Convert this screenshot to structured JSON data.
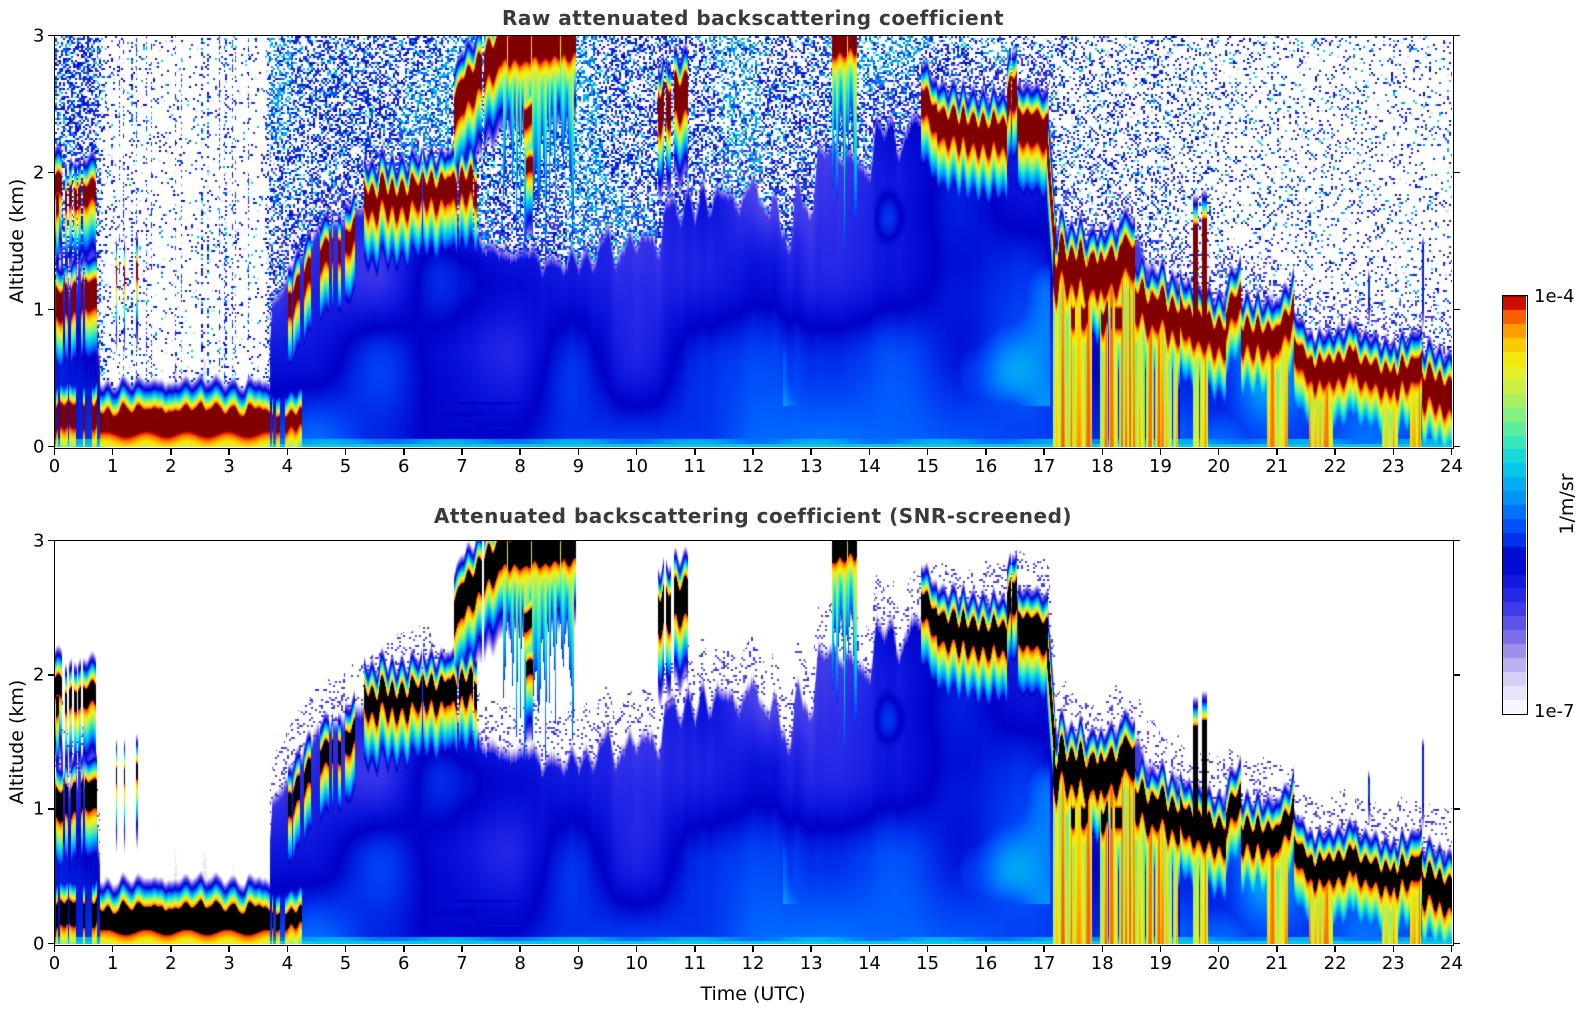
{
  "page": {
    "background": "#ffffff"
  },
  "chart_data": {
    "type": "heatmap",
    "panels": [
      {
        "id": "raw",
        "title": "Raw attenuated backscattering coefficient",
        "screened": false
      },
      {
        "id": "screened",
        "title": "Attenuated backscattering coefficient (SNR-screened)",
        "screened": true
      }
    ],
    "xlabel": "Time (UTC)",
    "ylabel": "Altitude (km)",
    "x_range": [
      0,
      24
    ],
    "y_range": [
      0,
      3
    ],
    "x_tick_labels": [
      "0",
      "1",
      "2",
      "3",
      "4",
      "5",
      "6",
      "7",
      "8",
      "9",
      "10",
      "11",
      "12",
      "13",
      "14",
      "15",
      "16",
      "17",
      "18",
      "19",
      "20",
      "21",
      "22",
      "23",
      "24"
    ],
    "y_tick_labels": [
      "0",
      "1",
      "2",
      "3"
    ],
    "title_color": "#3a3a3a",
    "colorbar": {
      "max_label": "1e-4",
      "min_label": "1e-7",
      "unit": "1/m/sr",
      "log_min_exp": -7,
      "log_max_exp": -4,
      "steps": 30,
      "stops": [
        [
          0.0,
          255,
          255,
          255
        ],
        [
          0.03,
          242,
          240,
          252
        ],
        [
          0.08,
          216,
          210,
          246
        ],
        [
          0.13,
          176,
          164,
          238
        ],
        [
          0.18,
          128,
          112,
          232
        ],
        [
          0.23,
          80,
          72,
          232
        ],
        [
          0.28,
          40,
          40,
          232
        ],
        [
          0.33,
          10,
          20,
          220
        ],
        [
          0.37,
          0,
          0,
          200
        ],
        [
          0.42,
          0,
          52,
          240
        ],
        [
          0.47,
          0,
          100,
          255
        ],
        [
          0.52,
          0,
          150,
          248
        ],
        [
          0.57,
          0,
          192,
          240
        ],
        [
          0.62,
          24,
          220,
          216
        ],
        [
          0.66,
          64,
          236,
          180
        ],
        [
          0.7,
          112,
          240,
          144
        ],
        [
          0.74,
          160,
          240,
          104
        ],
        [
          0.78,
          200,
          240,
          72
        ],
        [
          0.82,
          232,
          240,
          40
        ],
        [
          0.86,
          248,
          228,
          0
        ],
        [
          0.89,
          252,
          196,
          0
        ],
        [
          0.92,
          255,
          152,
          0
        ],
        [
          0.95,
          248,
          96,
          0
        ],
        [
          0.97,
          232,
          40,
          0
        ],
        [
          0.99,
          192,
          0,
          0
        ],
        [
          1.0,
          128,
          0,
          0
        ]
      ]
    },
    "features": {
      "black_threshold_log": -4.05,
      "white_cutoff_log": -6.95,
      "bl_top_km": [
        [
          0,
          1.22
        ],
        [
          0.5,
          1.25
        ],
        [
          0.68,
          1.22
        ],
        [
          0.76,
          0.42
        ],
        [
          1,
          0.37
        ],
        [
          1.5,
          0.37
        ],
        [
          2,
          0.36
        ],
        [
          2.5,
          0.37
        ],
        [
          3,
          0.36
        ],
        [
          3.5,
          0.37
        ],
        [
          3.64,
          0.37
        ],
        [
          3.74,
          0.98
        ],
        [
          4,
          1.15
        ],
        [
          4.3,
          1.4
        ],
        [
          4.6,
          1.52
        ],
        [
          5,
          1.6
        ],
        [
          5.5,
          1.78
        ],
        [
          6,
          1.92
        ],
        [
          6.5,
          1.95
        ],
        [
          6.8,
          1.7
        ],
        [
          7,
          1.55
        ],
        [
          7.5,
          1.42
        ],
        [
          8,
          1.36
        ],
        [
          8.5,
          1.32
        ],
        [
          9,
          1.32
        ],
        [
          9.5,
          1.38
        ],
        [
          10,
          1.48
        ],
        [
          10.5,
          1.55
        ],
        [
          11,
          1.68
        ],
        [
          11.5,
          1.82
        ],
        [
          12,
          1.78
        ],
        [
          12.5,
          1.62
        ],
        [
          13,
          1.88
        ],
        [
          13.5,
          2.02
        ],
        [
          14,
          2.08
        ],
        [
          14.5,
          2.22
        ],
        [
          15,
          2.42
        ],
        [
          15.5,
          2.38
        ],
        [
          16,
          2.42
        ],
        [
          16.5,
          2.48
        ],
        [
          17,
          2.42
        ],
        [
          17.06,
          2.4
        ],
        [
          17.2,
          1.55
        ],
        [
          17.5,
          1.42
        ],
        [
          18,
          1.42
        ],
        [
          18.5,
          1.5
        ],
        [
          19,
          1.15
        ],
        [
          19.5,
          1.05
        ],
        [
          20,
          0.98
        ],
        [
          20.3,
          1.05
        ],
        [
          20.5,
          0.92
        ],
        [
          21,
          1.0
        ],
        [
          21.5,
          0.72
        ],
        [
          22,
          0.72
        ],
        [
          22.5,
          0.68
        ],
        [
          23,
          0.62
        ],
        [
          23.3,
          0.67
        ],
        [
          23.5,
          0.62
        ],
        [
          24,
          0.58
        ]
      ],
      "ragged_amp": [
        [
          0,
          0.03
        ],
        [
          3.6,
          0.03
        ],
        [
          4,
          0.06
        ],
        [
          8,
          0.06
        ],
        [
          9,
          0.12
        ],
        [
          10,
          0.2
        ],
        [
          11,
          0.25
        ],
        [
          12,
          0.28
        ],
        [
          13,
          0.3
        ],
        [
          14,
          0.26
        ],
        [
          14.6,
          0.15
        ],
        [
          15,
          0.1
        ],
        [
          17,
          0.08
        ],
        [
          19,
          0.08
        ],
        [
          24,
          0.05
        ]
      ],
      "noise_density": [
        [
          0,
          0.55
        ],
        [
          0.7,
          0.55
        ],
        [
          0.8,
          0.22
        ],
        [
          1.1,
          0.07
        ],
        [
          3.6,
          0.07
        ],
        [
          3.7,
          0.5
        ],
        [
          8,
          0.52
        ],
        [
          12,
          0.48
        ],
        [
          14,
          0.48
        ],
        [
          15.5,
          0.45
        ],
        [
          16,
          0.35
        ],
        [
          17,
          0.28
        ],
        [
          19,
          0.25
        ],
        [
          19.6,
          0.2
        ],
        [
          20.2,
          0.14
        ],
        [
          22,
          0.13
        ],
        [
          24,
          0.12
        ]
      ],
      "fog": {
        "t0": 0.78,
        "t1": 3.7,
        "core_base": 0.1,
        "core_top": 0.27,
        "layer_top": 0.33
      },
      "cyan_under_cloud_start": 19.32,
      "cloud_fields": "[t0,t1,ztop0,ztop1,thickness,wave,gate,(coreLog)]",
      "clouds": [
        [
          0.0,
          0.12,
          1.95,
          2.0,
          0.13,
          0.02,
          0
        ],
        [
          0.02,
          0.72,
          1.12,
          1.22,
          0.2,
          0.03,
          0.35
        ],
        [
          0.02,
          0.7,
          1.86,
          1.93,
          0.13,
          0.02,
          0.45
        ],
        [
          0.02,
          0.78,
          0.3,
          0.32,
          0.16,
          0.02,
          0.45
        ],
        [
          1.05,
          1.42,
          1.28,
          1.33,
          0.1,
          0.02,
          0.35
        ],
        [
          3.72,
          4.25,
          0.22,
          0.25,
          0.1,
          0.02,
          0.4
        ],
        [
          4.0,
          4.4,
          1.1,
          1.4,
          0.16,
          0.03,
          0.25
        ],
        [
          4.52,
          5.15,
          1.45,
          1.62,
          0.15,
          0.03,
          0.4
        ],
        [
          5.3,
          7.25,
          1.88,
          1.98,
          0.17,
          0.05,
          0.12
        ],
        [
          6.85,
          7.65,
          2.6,
          3.02,
          0.24,
          0.04,
          0.1
        ],
        [
          7.65,
          8.95,
          3.0,
          3.06,
          0.2,
          0.02,
          0.15
        ],
        [
          8.02,
          8.2,
          2.45,
          2.48,
          0.12,
          0.01,
          0.2
        ],
        [
          8.06,
          8.22,
          2.1,
          2.12,
          0.09,
          0.01,
          0.3
        ],
        [
          10.35,
          10.88,
          2.6,
          2.72,
          0.26,
          0.04,
          0.25
        ],
        [
          13.35,
          13.78,
          3.0,
          3.06,
          0.15,
          0.02,
          0.1
        ],
        [
          14.88,
          15.15,
          2.62,
          2.48,
          0.18,
          0.03,
          0
        ],
        [
          15.15,
          16.35,
          2.44,
          2.36,
          0.2,
          0.04,
          0
        ],
        [
          16.35,
          16.55,
          2.62,
          2.78,
          0.22,
          0.03,
          0.2
        ],
        [
          16.55,
          17.06,
          2.46,
          2.4,
          0.22,
          0.03,
          0
        ],
        [
          17.04,
          17.18,
          2.35,
          1.55,
          0.22,
          0,
          0
        ],
        [
          17.15,
          18.32,
          1.42,
          1.38,
          0.25,
          0.07,
          0
        ],
        [
          17.45,
          18.35,
          1.02,
          1.0,
          0.13,
          0.03,
          0.5
        ],
        [
          18.32,
          18.55,
          1.52,
          1.45,
          0.22,
          0.04,
          0
        ],
        [
          18.55,
          19.32,
          1.18,
          1.02,
          0.22,
          0.06,
          0
        ],
        [
          19.32,
          20.12,
          1.02,
          0.92,
          0.2,
          0.05,
          0
        ],
        [
          19.55,
          19.63,
          1.62,
          1.62,
          0.72,
          0,
          0
        ],
        [
          19.7,
          19.79,
          1.66,
          1.66,
          0.76,
          0,
          0
        ],
        [
          20.12,
          20.38,
          0.98,
          1.18,
          0.16,
          0.04,
          0
        ],
        [
          20.38,
          21.02,
          0.92,
          0.84,
          0.18,
          0.04,
          0
        ],
        [
          21.02,
          21.28,
          0.92,
          1.06,
          0.16,
          0.04,
          0
        ],
        [
          21.28,
          21.62,
          0.78,
          0.62,
          0.16,
          0.03,
          0
        ],
        [
          21.62,
          22.35,
          0.62,
          0.72,
          0.17,
          0.04,
          0
        ],
        [
          22.35,
          23.02,
          0.66,
          0.54,
          0.16,
          0.04,
          0
        ],
        [
          23.02,
          23.48,
          0.58,
          0.68,
          0.16,
          0.04,
          0
        ],
        [
          23.48,
          24.05,
          0.55,
          0.44,
          0.22,
          0.04,
          0
        ],
        [
          22.3,
          22.62,
          1.28,
          1.18,
          0.1,
          0.02,
          0.62,
          -5.7
        ],
        [
          23.48,
          23.56,
          1.45,
          1.45,
          0.4,
          0,
          0.45,
          -5.8
        ]
      ],
      "precip_fields": "[t0,t1,top0,top1,strength,mode(0=virga,1=rain)]",
      "precip": [
        [
          7.7,
          8.92,
          3.0,
          3.0,
          1.0,
          0
        ],
        [
          13.35,
          13.78,
          3.0,
          3.0,
          0.85,
          0
        ],
        [
          17.15,
          17.82,
          1.4,
          1.38,
          1.0,
          1
        ],
        [
          17.96,
          19.3,
          1.4,
          1.0,
          1.0,
          1
        ],
        [
          19.55,
          19.8,
          0.92,
          0.92,
          0.5,
          1
        ],
        [
          20.82,
          21.18,
          0.85,
          0.85,
          0.9,
          1
        ],
        [
          21.55,
          21.95,
          0.58,
          0.62,
          0.75,
          1
        ],
        [
          22.8,
          23.08,
          0.52,
          0.52,
          0.85,
          1
        ],
        [
          23.28,
          23.46,
          0.6,
          0.6,
          0.6,
          1
        ]
      ]
    }
  }
}
